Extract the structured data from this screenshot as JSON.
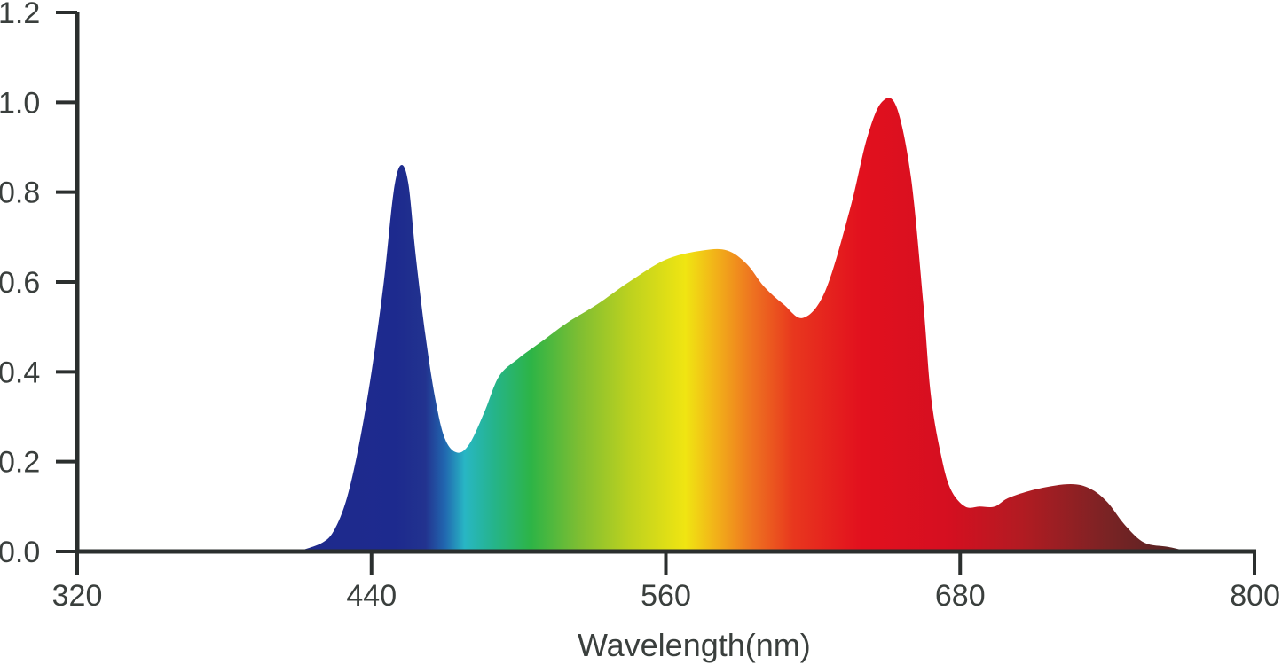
{
  "chart_data": {
    "type": "area",
    "title": "",
    "xlabel": "Wavelength(nm)",
    "ylabel": "",
    "xlim": [
      320,
      800
    ],
    "ylim": [
      0,
      1.2
    ],
    "x_ticks": [
      "320",
      "440",
      "560",
      "680",
      "800"
    ],
    "y_ticks": [
      "0.0",
      "0.2",
      "0.4",
      "0.6",
      "0.8",
      "1.0",
      "1.2"
    ],
    "grid": false,
    "legend": "none",
    "fill": "visible-spectrum gradient",
    "series": [
      {
        "x": [
          410,
          420,
          425,
          430,
          435,
          440,
          445,
          449,
          452,
          455,
          458,
          462,
          466,
          470,
          475,
          480,
          486,
          492,
          500,
          510,
          520,
          532,
          545,
          560,
          575,
          585,
          593,
          600,
          608,
          616,
          625,
          635,
          642,
          648,
          654,
          660,
          665,
          668,
          672,
          676,
          682,
          688,
          694,
          700,
          712,
          725,
          733,
          740,
          747,
          755,
          765,
          773
        ],
        "y": [
          0.0,
          0.02,
          0.05,
          0.12,
          0.24,
          0.4,
          0.6,
          0.8,
          0.86,
          0.82,
          0.66,
          0.48,
          0.34,
          0.25,
          0.22,
          0.24,
          0.31,
          0.39,
          0.43,
          0.47,
          0.51,
          0.55,
          0.6,
          0.65,
          0.67,
          0.67,
          0.64,
          0.59,
          0.55,
          0.52,
          0.58,
          0.76,
          0.92,
          1.0,
          0.99,
          0.83,
          0.55,
          0.35,
          0.22,
          0.14,
          0.1,
          0.1,
          0.1,
          0.12,
          0.14,
          0.15,
          0.14,
          0.11,
          0.06,
          0.02,
          0.01,
          0.0
        ]
      }
    ],
    "colors": {
      "axis": "#2b2f2e",
      "text": "#3a3f3d",
      "spectrum": [
        {
          "nm": 410,
          "color": "#1f2a8c"
        },
        {
          "nm": 450,
          "color": "#1d2a8e"
        },
        {
          "nm": 462,
          "color": "#22338f"
        },
        {
          "nm": 470,
          "color": "#2168b0"
        },
        {
          "nm": 478,
          "color": "#28b6c4"
        },
        {
          "nm": 490,
          "color": "#25b48a"
        },
        {
          "nm": 505,
          "color": "#2db446"
        },
        {
          "nm": 525,
          "color": "#7fbe32"
        },
        {
          "nm": 545,
          "color": "#bcd11f"
        },
        {
          "nm": 568,
          "color": "#f0e512"
        },
        {
          "nm": 580,
          "color": "#f2b319"
        },
        {
          "nm": 595,
          "color": "#ee7420"
        },
        {
          "nm": 612,
          "color": "#e8371e"
        },
        {
          "nm": 640,
          "color": "#e2101e"
        },
        {
          "nm": 675,
          "color": "#d50f20"
        },
        {
          "nm": 705,
          "color": "#b21b22"
        },
        {
          "nm": 740,
          "color": "#7a2324"
        },
        {
          "nm": 773,
          "color": "#4e2323"
        }
      ]
    }
  }
}
